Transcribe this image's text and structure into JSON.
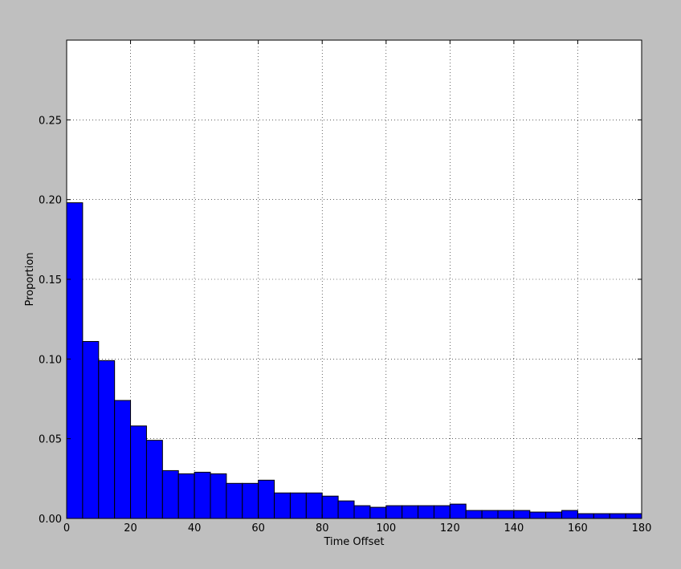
{
  "chart_data": {
    "type": "bar",
    "xlabel": "Time Offset",
    "ylabel": "Proportion",
    "xlim": [
      0,
      180
    ],
    "ylim": [
      0,
      0.3
    ],
    "grid": true,
    "bar_color": "#0000ff",
    "bar_edge_color": "#000000",
    "bin_width": 5,
    "bins": [
      0,
      5,
      10,
      15,
      20,
      25,
      30,
      35,
      40,
      45,
      50,
      55,
      60,
      65,
      70,
      75,
      80,
      85,
      90,
      95,
      100,
      105,
      110,
      115,
      120,
      125,
      130,
      135,
      140,
      145,
      150,
      155,
      160,
      165,
      170,
      175
    ],
    "values": [
      0.198,
      0.111,
      0.099,
      0.074,
      0.058,
      0.049,
      0.03,
      0.028,
      0.029,
      0.028,
      0.022,
      0.022,
      0.024,
      0.016,
      0.016,
      0.016,
      0.014,
      0.011,
      0.008,
      0.007,
      0.008,
      0.008,
      0.008,
      0.008,
      0.009,
      0.005,
      0.005,
      0.005,
      0.005,
      0.004,
      0.004,
      0.005,
      0.003,
      0.003,
      0.003,
      0.003
    ],
    "xticks": [
      {
        "value": 0,
        "label": "0"
      },
      {
        "value": 20,
        "label": "20"
      },
      {
        "value": 40,
        "label": "40"
      },
      {
        "value": 60,
        "label": "60"
      },
      {
        "value": 80,
        "label": "80"
      },
      {
        "value": 100,
        "label": "100"
      },
      {
        "value": 120,
        "label": "120"
      },
      {
        "value": 140,
        "label": "140"
      },
      {
        "value": 160,
        "label": "160"
      },
      {
        "value": 180,
        "label": "180"
      }
    ],
    "yticks": [
      {
        "value": 0.0,
        "label": "0.00"
      },
      {
        "value": 0.05,
        "label": "0.05"
      },
      {
        "value": 0.1,
        "label": "0.10"
      },
      {
        "value": 0.15,
        "label": "0.15"
      },
      {
        "value": 0.2,
        "label": "0.20"
      },
      {
        "value": 0.25,
        "label": "0.25"
      }
    ]
  }
}
